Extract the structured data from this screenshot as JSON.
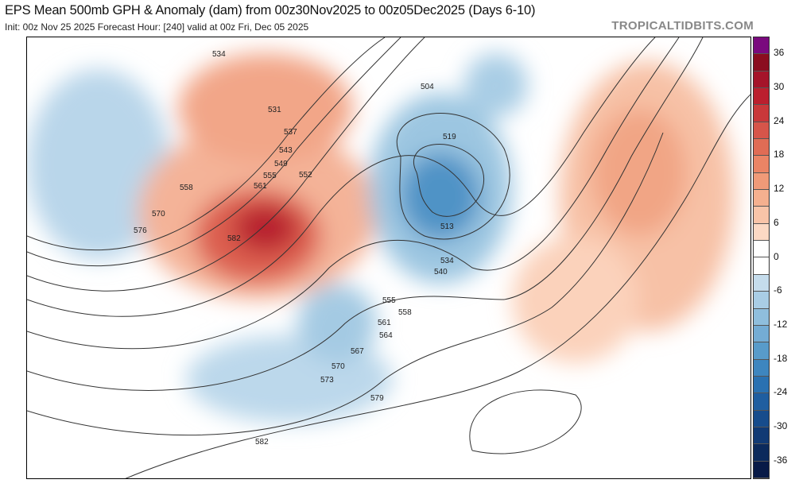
{
  "header": {
    "title": "EPS Mean 500mb GPH & Anomaly (dam) from 00z30Nov2025 to 00z05Dec2025 (Days 6-10)",
    "subtitle": "Init: 00z Nov 25 2025   Forecast Hour: [240]   valid at 00z Fri, Dec 05 2025",
    "brand": "TROPICALTIDBITS.COM"
  },
  "colorbar": {
    "ticks": [
      "36",
      "30",
      "24",
      "18",
      "12",
      "6",
      "0",
      "-6",
      "-12",
      "-18",
      "-24",
      "-30",
      "-36"
    ],
    "colors": [
      "#7a0a7e",
      "#8b0d1f",
      "#a5142a",
      "#bb1f2e",
      "#c9383a",
      "#d6554a",
      "#e06c55",
      "#ea8465",
      "#f09a78",
      "#f5b08f",
      "#f9c4a8",
      "#fcd9c4",
      "#ffffff",
      "#ffffff",
      "#c5dcec",
      "#a9cde5",
      "#8fbedd",
      "#74acd4",
      "#589bca",
      "#3e86bf",
      "#2a71b1",
      "#1f5ea0",
      "#174c8c",
      "#113a74",
      "#0b2a5c",
      "#081a47"
    ]
  },
  "map": {
    "contour_labels": [
      "534",
      "531",
      "537",
      "543",
      "549",
      "555",
      "552",
      "558",
      "561",
      "570",
      "576",
      "582",
      "504",
      "519",
      "513",
      "534",
      "540",
      "555",
      "558",
      "561",
      "564",
      "567",
      "570",
      "573",
      "579",
      "582"
    ]
  }
}
